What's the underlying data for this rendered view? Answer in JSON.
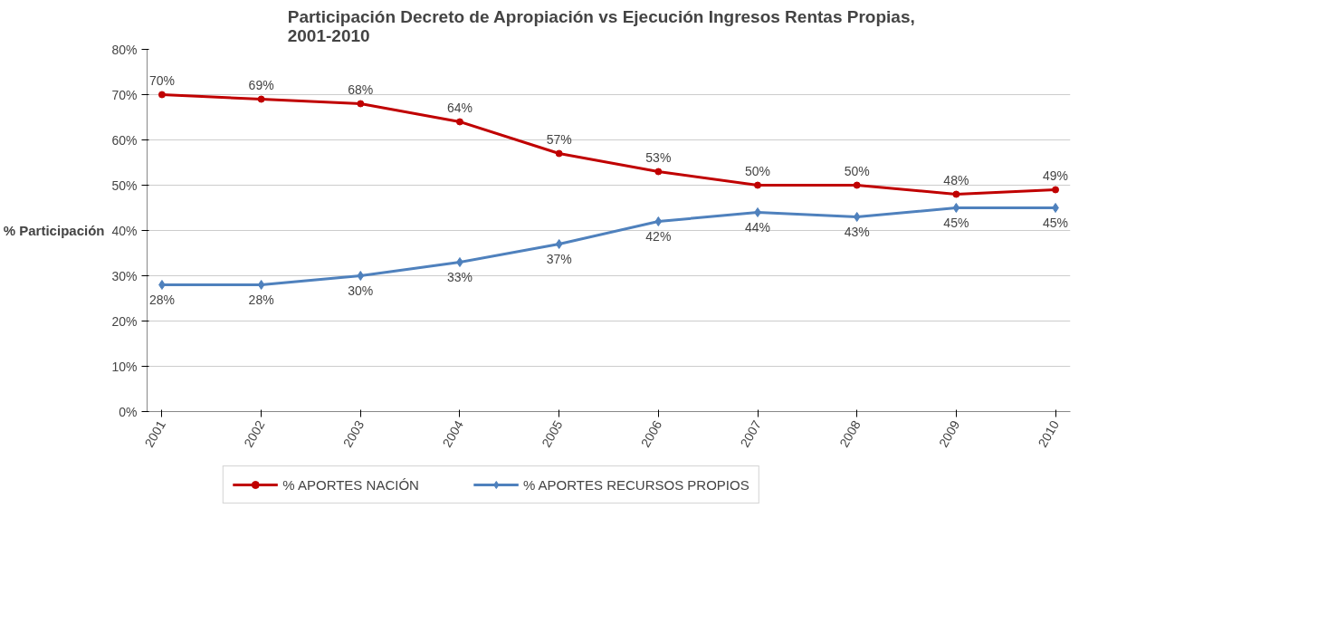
{
  "chart_data": {
    "type": "line",
    "title": "Participación  Decreto de Apropiación  vs Ejecución  Ingresos Rentas Propias,\n2001-2010",
    "ylabel": "% Participación",
    "categories": [
      "2001",
      "2002",
      "2003",
      "2004",
      "2005",
      "2006",
      "2007",
      "2008",
      "2009",
      "2010"
    ],
    "series": [
      {
        "name": "% APORTES NACIÓN",
        "color": "#c00000",
        "marker": "circle",
        "values": [
          70,
          69,
          68,
          64,
          57,
          53,
          50,
          50,
          48,
          49
        ],
        "value_labels": [
          "70%",
          "69%",
          "68%",
          "64%",
          "57%",
          "53%",
          "50%",
          "50%",
          "48%",
          "49%"
        ]
      },
      {
        "name": "% APORTES RECURSOS PROPIOS",
        "color": "#4f81bd",
        "marker": "diamond",
        "values": [
          28,
          28,
          30,
          33,
          37,
          42,
          44,
          43,
          45,
          45
        ],
        "value_labels": [
          "28%",
          "28%",
          "30%",
          "33%",
          "37%",
          "42%",
          "44%",
          "43%",
          "45%",
          "45%"
        ]
      }
    ],
    "ylim": [
      0,
      80
    ],
    "yticks": [
      {
        "value": 0,
        "label": "0%"
      },
      {
        "value": 10,
        "label": "10%"
      },
      {
        "value": 20,
        "label": "20%"
      },
      {
        "value": 30,
        "label": "30%"
      },
      {
        "value": 40,
        "label": "40%"
      },
      {
        "value": 50,
        "label": "50%"
      },
      {
        "value": 60,
        "label": "60%"
      },
      {
        "value": 70,
        "label": "70%"
      },
      {
        "value": 80,
        "label": "80%"
      }
    ],
    "grid": "y",
    "legend": "bottom",
    "line_style": "solid"
  }
}
